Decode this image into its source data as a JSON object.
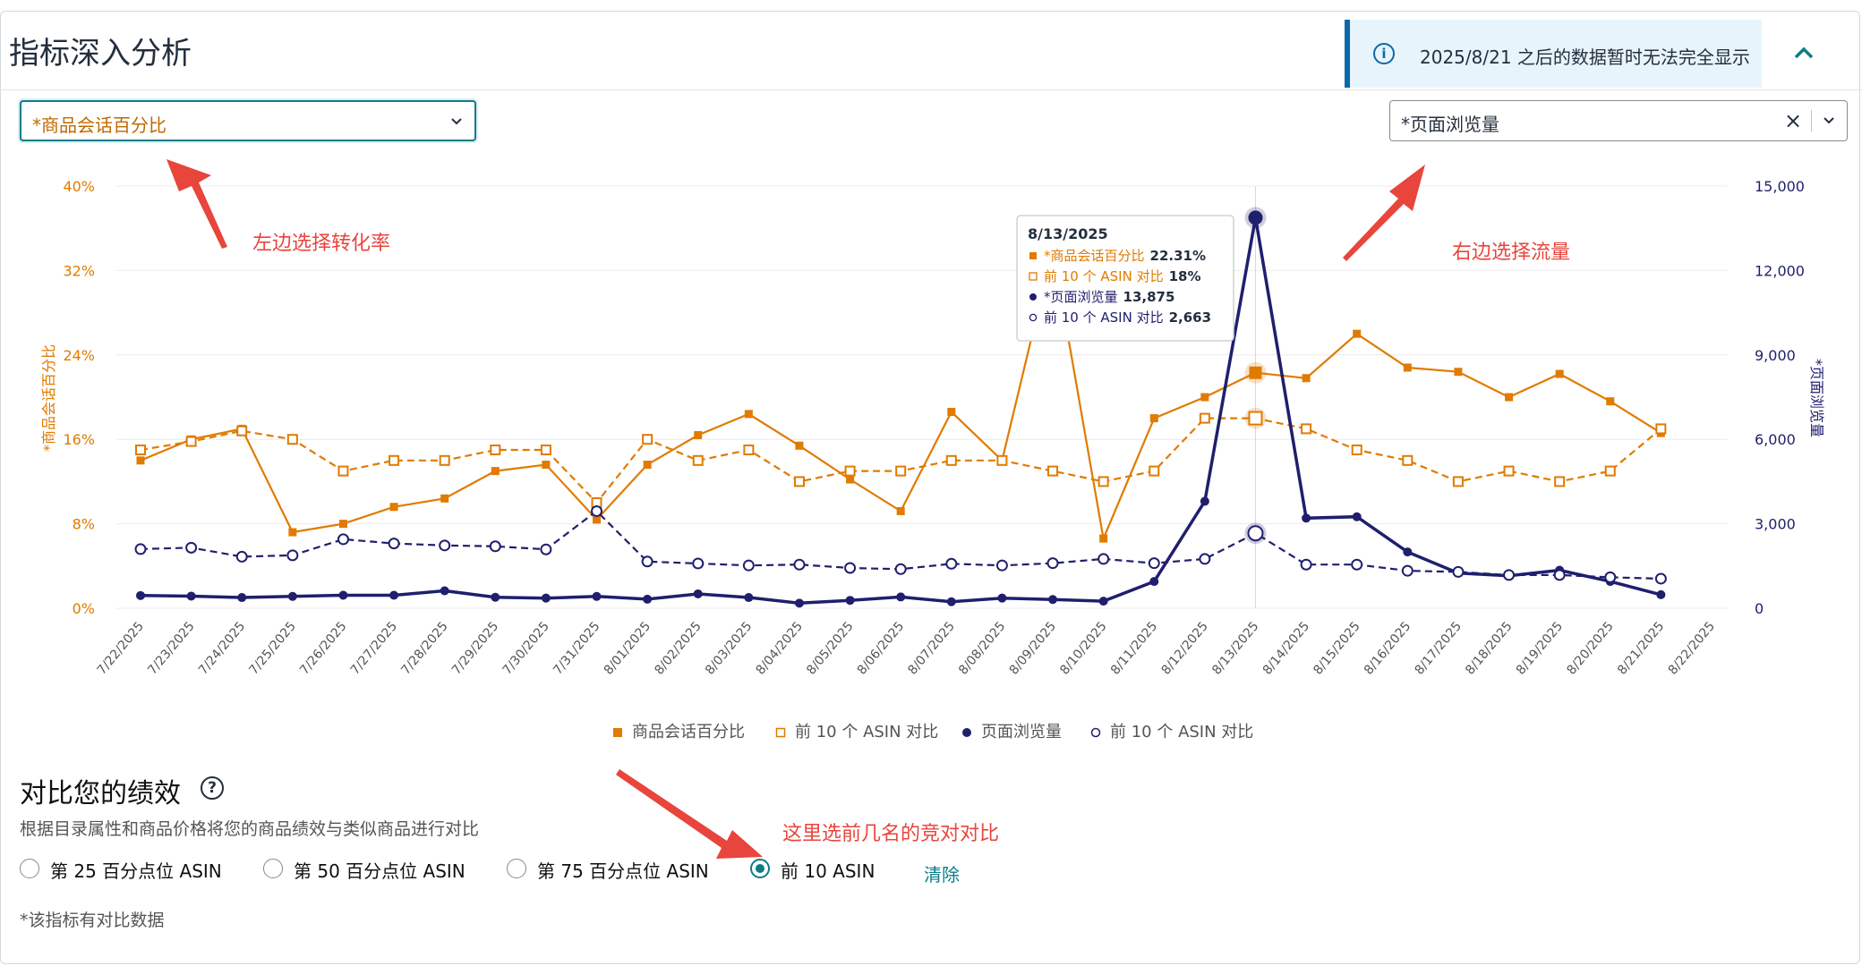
{
  "header": {
    "title": "指标深入分析",
    "notice_text": "2025/8/21 之后的数据暂时无法完全显示"
  },
  "selects": {
    "left_value": "*商品会话百分比",
    "right_value": "*页面浏览量"
  },
  "annotations": {
    "left_hint": "左边选择转化率",
    "right_hint": "右边选择流量",
    "compare_hint": "这里选前几名的竞对对比"
  },
  "chart_data": {
    "type": "line",
    "x": [
      "7/22/2025",
      "7/23/2025",
      "7/24/2025",
      "7/25/2025",
      "7/26/2025",
      "7/27/2025",
      "7/28/2025",
      "7/29/2025",
      "7/30/2025",
      "7/31/2025",
      "8/01/2025",
      "8/02/2025",
      "8/03/2025",
      "8/04/2025",
      "8/05/2025",
      "8/06/2025",
      "8/07/2025",
      "8/08/2025",
      "8/09/2025",
      "8/10/2025",
      "8/11/2025",
      "8/12/2025",
      "8/13/2025",
      "8/14/2025",
      "8/15/2025",
      "8/16/2025",
      "8/17/2025",
      "8/18/2025",
      "8/19/2025",
      "8/20/2025",
      "8/21/2025",
      "8/22/2025"
    ],
    "ylabel_left": "*商品会话百分比",
    "ylabel_right": "*页面浏览量",
    "yticks_left": [
      "40%",
      "32%",
      "24%",
      "16%",
      "8%",
      "0%"
    ],
    "yticks_right": [
      "15,000",
      "12,000",
      "9,000",
      "6,000",
      "3,000",
      "0"
    ],
    "ylim_left": [
      0,
      40
    ],
    "ylim_right": [
      0,
      15000
    ],
    "series": [
      {
        "name": "商品会话百分比",
        "axis": "left",
        "style": "solid",
        "marker": "square-filled",
        "color": "#e07b00",
        "values": [
          14,
          16,
          17,
          7.2,
          8,
          9.6,
          10.4,
          13,
          13.6,
          8.4,
          13.6,
          16.4,
          18.4,
          15.4,
          12.2,
          9.2,
          18.6,
          14,
          34,
          6.6,
          18,
          20,
          22.31,
          21.8,
          26,
          22.8,
          22.4,
          20,
          22.2,
          19.6,
          16.6,
          null
        ]
      },
      {
        "name": "前 10 个 ASIN 对比",
        "axis": "left",
        "style": "dashed",
        "marker": "square-open",
        "color": "#e07b00",
        "values": [
          15,
          15.8,
          16.8,
          16,
          13,
          14,
          14,
          15,
          15,
          10,
          16,
          14,
          15,
          12,
          13,
          13,
          14,
          14,
          13,
          12,
          13,
          18,
          18,
          17,
          15,
          14,
          12,
          13,
          12,
          13,
          17,
          null
        ]
      },
      {
        "name": "页面浏览量",
        "axis": "right",
        "style": "solid",
        "marker": "circle-filled",
        "color": "#1f1f6e",
        "values": [
          450,
          430,
          380,
          420,
          460,
          460,
          620,
          390,
          360,
          420,
          320,
          510,
          380,
          180,
          280,
          400,
          230,
          360,
          310,
          250,
          950,
          3800,
          13875,
          3200,
          3250,
          2000,
          1250,
          1150,
          1350,
          950,
          480,
          null
        ]
      },
      {
        "name": "前 10 个 ASIN 对比",
        "axis": "right",
        "style": "dashed",
        "marker": "circle-open",
        "color": "#1f1f6e",
        "values": [
          2100,
          2150,
          1830,
          1880,
          2450,
          2300,
          2230,
          2200,
          2090,
          3450,
          1660,
          1590,
          1520,
          1550,
          1430,
          1390,
          1580,
          1520,
          1600,
          1750,
          1600,
          1750,
          2663,
          1550,
          1550,
          1330,
          1290,
          1180,
          1180,
          1100,
          1050,
          null
        ]
      }
    ],
    "tooltip": {
      "date": "8/13/2025",
      "rows": [
        {
          "label": "*商品会话百分比",
          "value": "22.31%",
          "marker": "square-filled",
          "color": "#e07b00"
        },
        {
          "label": "前 10 个 ASIN 对比",
          "value": "18%",
          "marker": "square-open",
          "color": "#e07b00"
        },
        {
          "label": "*页面浏览量",
          "value": "13,875",
          "marker": "circle-filled",
          "color": "#1f1f6e"
        },
        {
          "label": "前 10 个 ASIN 对比",
          "value": "2,663",
          "marker": "circle-open",
          "color": "#1f1f6e"
        }
      ]
    },
    "legend_position": "bottom",
    "grid": true
  },
  "compare": {
    "title": "对比您的绩效",
    "description": "根据目录属性和商品价格将您的商品绩效与类似商品进行对比",
    "options": [
      {
        "label": "第 25 百分点位 ASIN",
        "checked": false
      },
      {
        "label": "第 50 百分点位 ASIN",
        "checked": false
      },
      {
        "label": "第 75 百分点位 ASIN",
        "checked": false
      },
      {
        "label": "前 10 ASIN",
        "checked": true
      }
    ],
    "clear_label": "清除",
    "footnote": "*该指标有对比数据"
  },
  "colors": {
    "orange": "#e07b00",
    "navy": "#1f1f6e",
    "teal": "#0e7c86",
    "annotation": "#e8453c"
  }
}
